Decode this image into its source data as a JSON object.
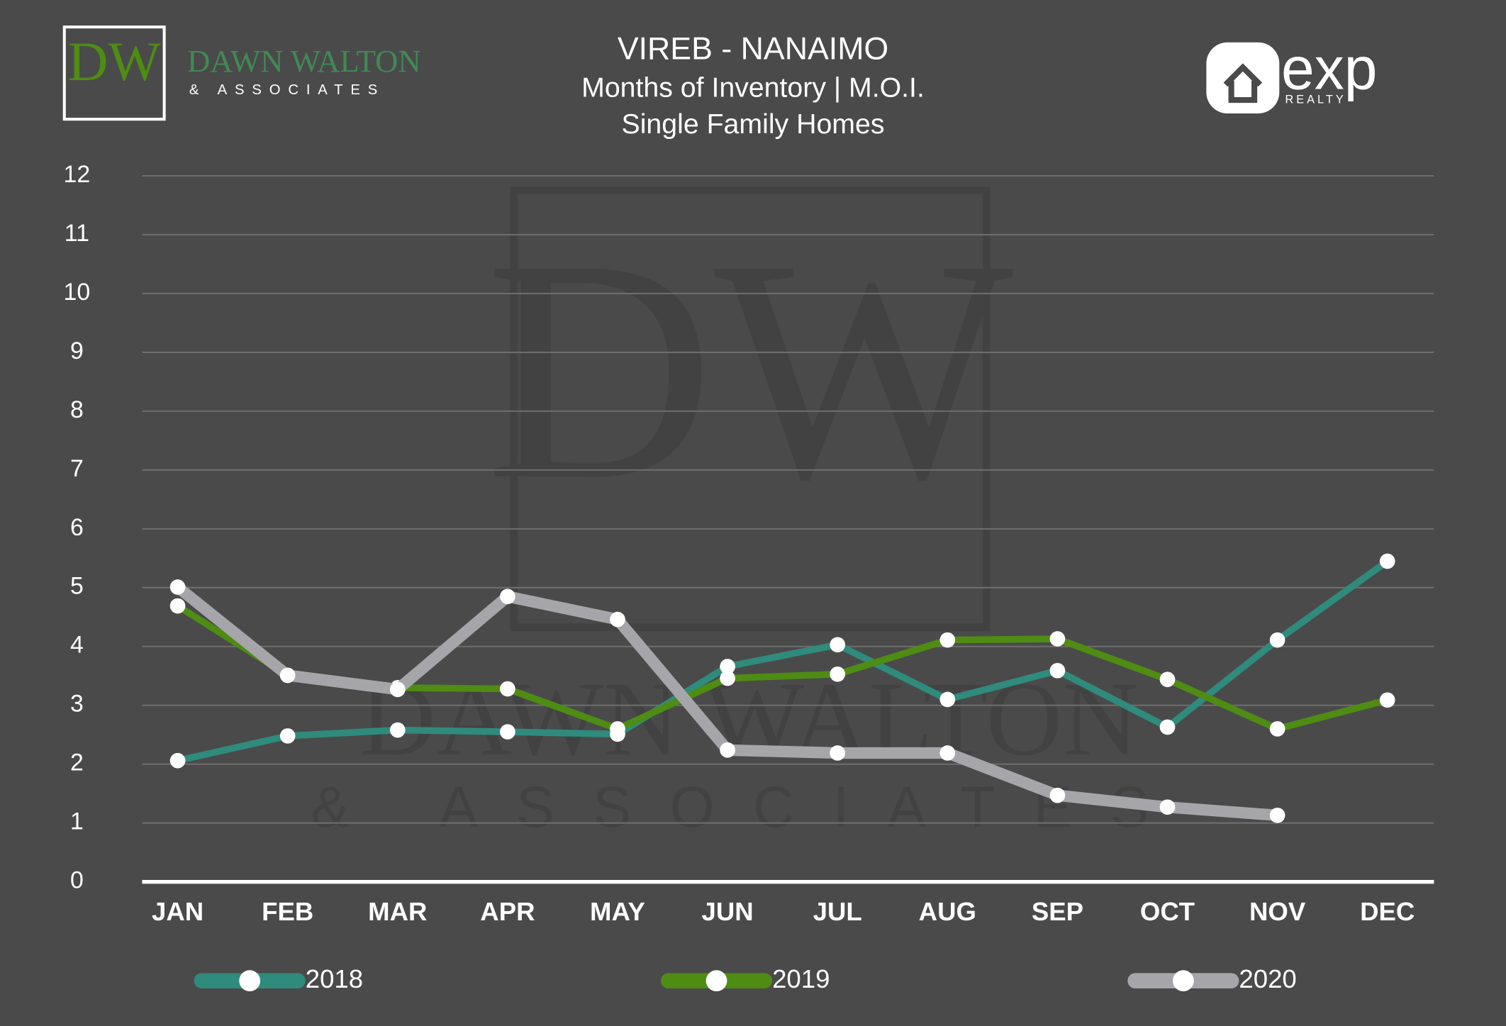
{
  "chart_data": {
    "type": "line",
    "title": "VIREB - NANAIMO",
    "subtitle": [
      "Months of Inventory  |  M.O.I.",
      "Single Family Homes"
    ],
    "logos": {
      "left": {
        "mark": "DW",
        "name": "DAWN WALTON",
        "tagline": "& ASSOCIATES"
      },
      "right": {
        "name": "exp",
        "tagline": "REALTY"
      }
    },
    "categories": [
      "JAN",
      "FEB",
      "MAR",
      "APR",
      "MAY",
      "JUN",
      "JUL",
      "AUG",
      "SEP",
      "OCT",
      "NOV",
      "DEC"
    ],
    "series": [
      {
        "name": "2018",
        "color": "#2f8b7c",
        "values": [
          2.06,
          2.48,
          2.58,
          2.55,
          2.51,
          3.66,
          4.03,
          3.1,
          3.59,
          2.63,
          4.11,
          5.45
        ]
      },
      {
        "name": "2019",
        "color": "#4e8c13",
        "values": [
          4.69,
          3.51,
          3.3,
          3.28,
          2.6,
          3.46,
          3.53,
          4.11,
          4.13,
          3.44,
          2.6,
          3.09
        ]
      },
      {
        "name": "2020",
        "color": "#a6a6aa",
        "values": [
          5.01,
          3.51,
          3.27,
          4.85,
          4.46,
          2.24,
          2.19,
          2.19,
          1.47,
          1.27,
          1.13,
          null
        ]
      }
    ],
    "ylim": [
      0,
      12
    ],
    "yticks": [
      0,
      1,
      2,
      3,
      4,
      5,
      6,
      7,
      8,
      9,
      10,
      11,
      12
    ],
    "grid": true,
    "legend": "bottom"
  }
}
